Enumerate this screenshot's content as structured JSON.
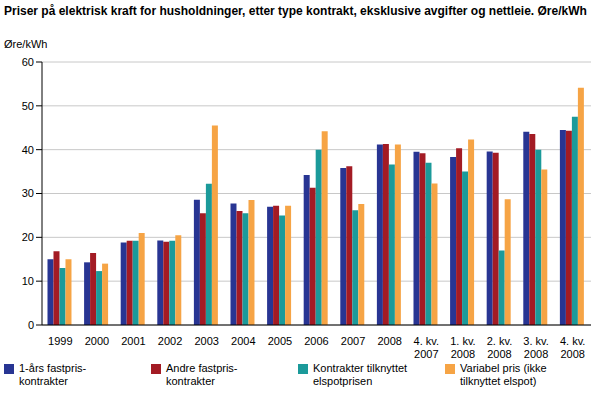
{
  "chart_data": {
    "type": "bar",
    "title": "Priser på elektrisk kraft for husholdninger, etter type kontrakt, eksklusive avgifter og nettleie. Øre/kWh",
    "y_label": "Øre/kWh",
    "categories": [
      "1999",
      "2000",
      "2001",
      "2002",
      "2003",
      "2004",
      "2005",
      "2006",
      "2007",
      "2008",
      "4. kv. 2007",
      "1. kv. 2008",
      "2. kv. 2008",
      "3. kv. 2008",
      "4. kv. 2008"
    ],
    "series": [
      {
        "name": "1-års fastpris-kontrakter",
        "color": "#283593",
        "values": [
          15,
          14.3,
          18.8,
          19.3,
          28.6,
          27.7,
          27,
          34.2,
          35.8,
          41.2,
          39.5,
          38.3,
          39.6,
          44.1,
          44.5
        ]
      },
      {
        "name": "Andre fastpris-kontrakter",
        "color": "#a31b24",
        "values": [
          16.8,
          16.4,
          19.2,
          19,
          25.5,
          26,
          27.2,
          31.3,
          36.2,
          41.3,
          39.2,
          40.3,
          39.3,
          43.6,
          44.3
        ]
      },
      {
        "name": "Kontrakter tilknyttet elspotprisen",
        "color": "#1b9a9a",
        "values": [
          13,
          12.3,
          19.2,
          19.2,
          32.2,
          25.5,
          25,
          40,
          26.2,
          36.6,
          37,
          35,
          17,
          40,
          47.5
        ]
      },
      {
        "name": "Variabel pris (ikke tilknyttet elspot)",
        "color": "#f6a445",
        "values": [
          15,
          14,
          21,
          20.5,
          45.5,
          28.5,
          27.2,
          44.2,
          27.6,
          41.2,
          32.3,
          42.3,
          28.7,
          35.5,
          54.1
        ]
      }
    ],
    "ylim": [
      0,
      60
    ],
    "yticks": [
      0,
      10,
      20,
      30,
      40,
      50,
      60
    ],
    "grid": true,
    "legend": "bottom"
  }
}
